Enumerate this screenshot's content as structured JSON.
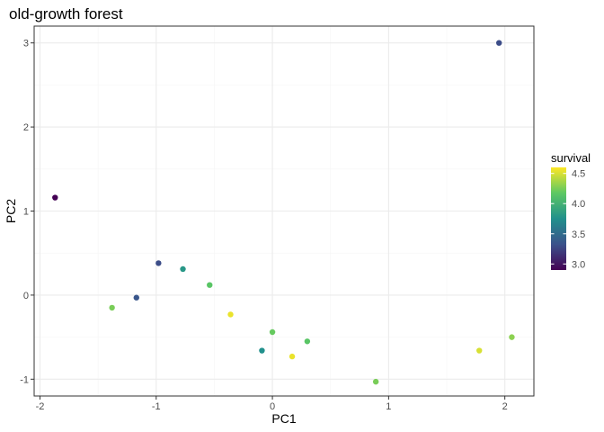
{
  "chart_data": {
    "type": "scatter",
    "title": "old-growth forest",
    "xlabel": "PC1",
    "ylabel": "PC2",
    "xlim": [
      -2.05,
      2.25
    ],
    "ylim": [
      -1.2,
      3.2
    ],
    "x_ticks": [
      -2,
      -1,
      0,
      1,
      2
    ],
    "x_tick_labels": [
      "-2",
      "-1",
      "0",
      "1",
      "2"
    ],
    "y_ticks": [
      -1,
      0,
      1,
      2,
      3
    ],
    "y_tick_labels": [
      "-1",
      "0",
      "1",
      "2",
      "3"
    ],
    "grid": true,
    "legend": {
      "title": "survival",
      "placement": "right",
      "range": [
        2.9,
        4.6
      ],
      "ticks": [
        3.0,
        3.5,
        4.0,
        4.5
      ],
      "tick_labels": [
        "3.0",
        "3.5",
        "4.0",
        "4.5"
      ]
    },
    "points": [
      {
        "x": -1.87,
        "y": 1.16,
        "survival": 2.9
      },
      {
        "x": 1.95,
        "y": 3.0,
        "survival": 3.3
      },
      {
        "x": -0.98,
        "y": 0.38,
        "survival": 3.3
      },
      {
        "x": -1.17,
        "y": -0.03,
        "survival": 3.35
      },
      {
        "x": -0.77,
        "y": 0.31,
        "survival": 3.8
      },
      {
        "x": -0.09,
        "y": -0.66,
        "survival": 3.75
      },
      {
        "x": -0.54,
        "y": 0.12,
        "survival": 4.15
      },
      {
        "x": -1.38,
        "y": -0.15,
        "survival": 4.25
      },
      {
        "x": 0.0,
        "y": -0.44,
        "survival": 4.2
      },
      {
        "x": 0.3,
        "y": -0.55,
        "survival": 4.15
      },
      {
        "x": 0.89,
        "y": -1.03,
        "survival": 4.25
      },
      {
        "x": 2.06,
        "y": -0.5,
        "survival": 4.3
      },
      {
        "x": -0.36,
        "y": -0.23,
        "survival": 4.55
      },
      {
        "x": 0.17,
        "y": -0.73,
        "survival": 4.55
      },
      {
        "x": 1.78,
        "y": -0.66,
        "survival": 4.5
      }
    ],
    "colors": {
      "panel_border": "#333333",
      "grid_major": "#ebebeb",
      "grid_minor": "#f5f5f5",
      "viridis": [
        "#440154",
        "#3b528b",
        "#21908c",
        "#5dc863",
        "#fde725"
      ]
    }
  }
}
